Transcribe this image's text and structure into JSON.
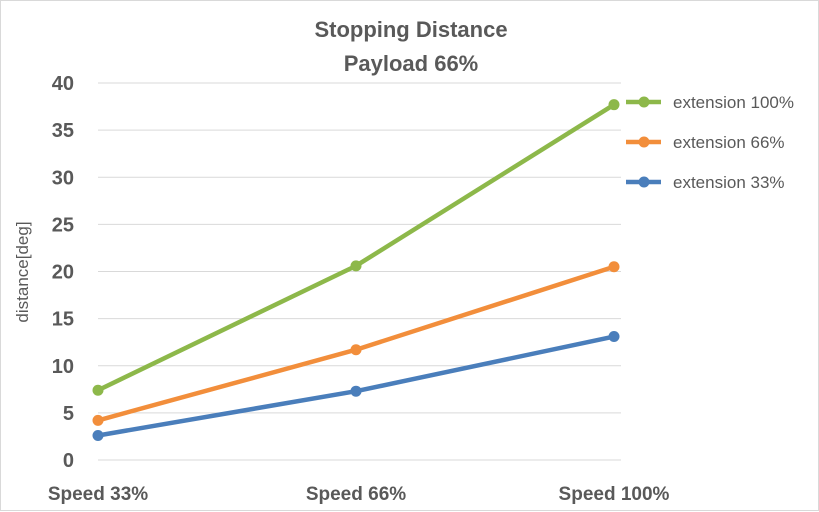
{
  "chart_data": {
    "type": "line",
    "title": "Stopping Distance",
    "subtitle": "Payload 66%",
    "xlabel": "",
    "ylabel": "distance[deg]",
    "categories": [
      "Speed 33%",
      "Speed 66%",
      "Speed 100%"
    ],
    "ylim": [
      0,
      40
    ],
    "yticks": [
      0,
      5,
      10,
      15,
      20,
      25,
      30,
      35,
      40
    ],
    "grid": true,
    "legend_position": "right",
    "series": [
      {
        "name": "extension 100%",
        "color": "#8db84a",
        "values": [
          7.4,
          20.6,
          37.7
        ]
      },
      {
        "name": "extension 66%",
        "color": "#f28e3b",
        "values": [
          4.2,
          11.7,
          20.5
        ]
      },
      {
        "name": "extension 33%",
        "color": "#4a7ebb",
        "values": [
          2.6,
          7.3,
          13.1
        ]
      }
    ]
  }
}
